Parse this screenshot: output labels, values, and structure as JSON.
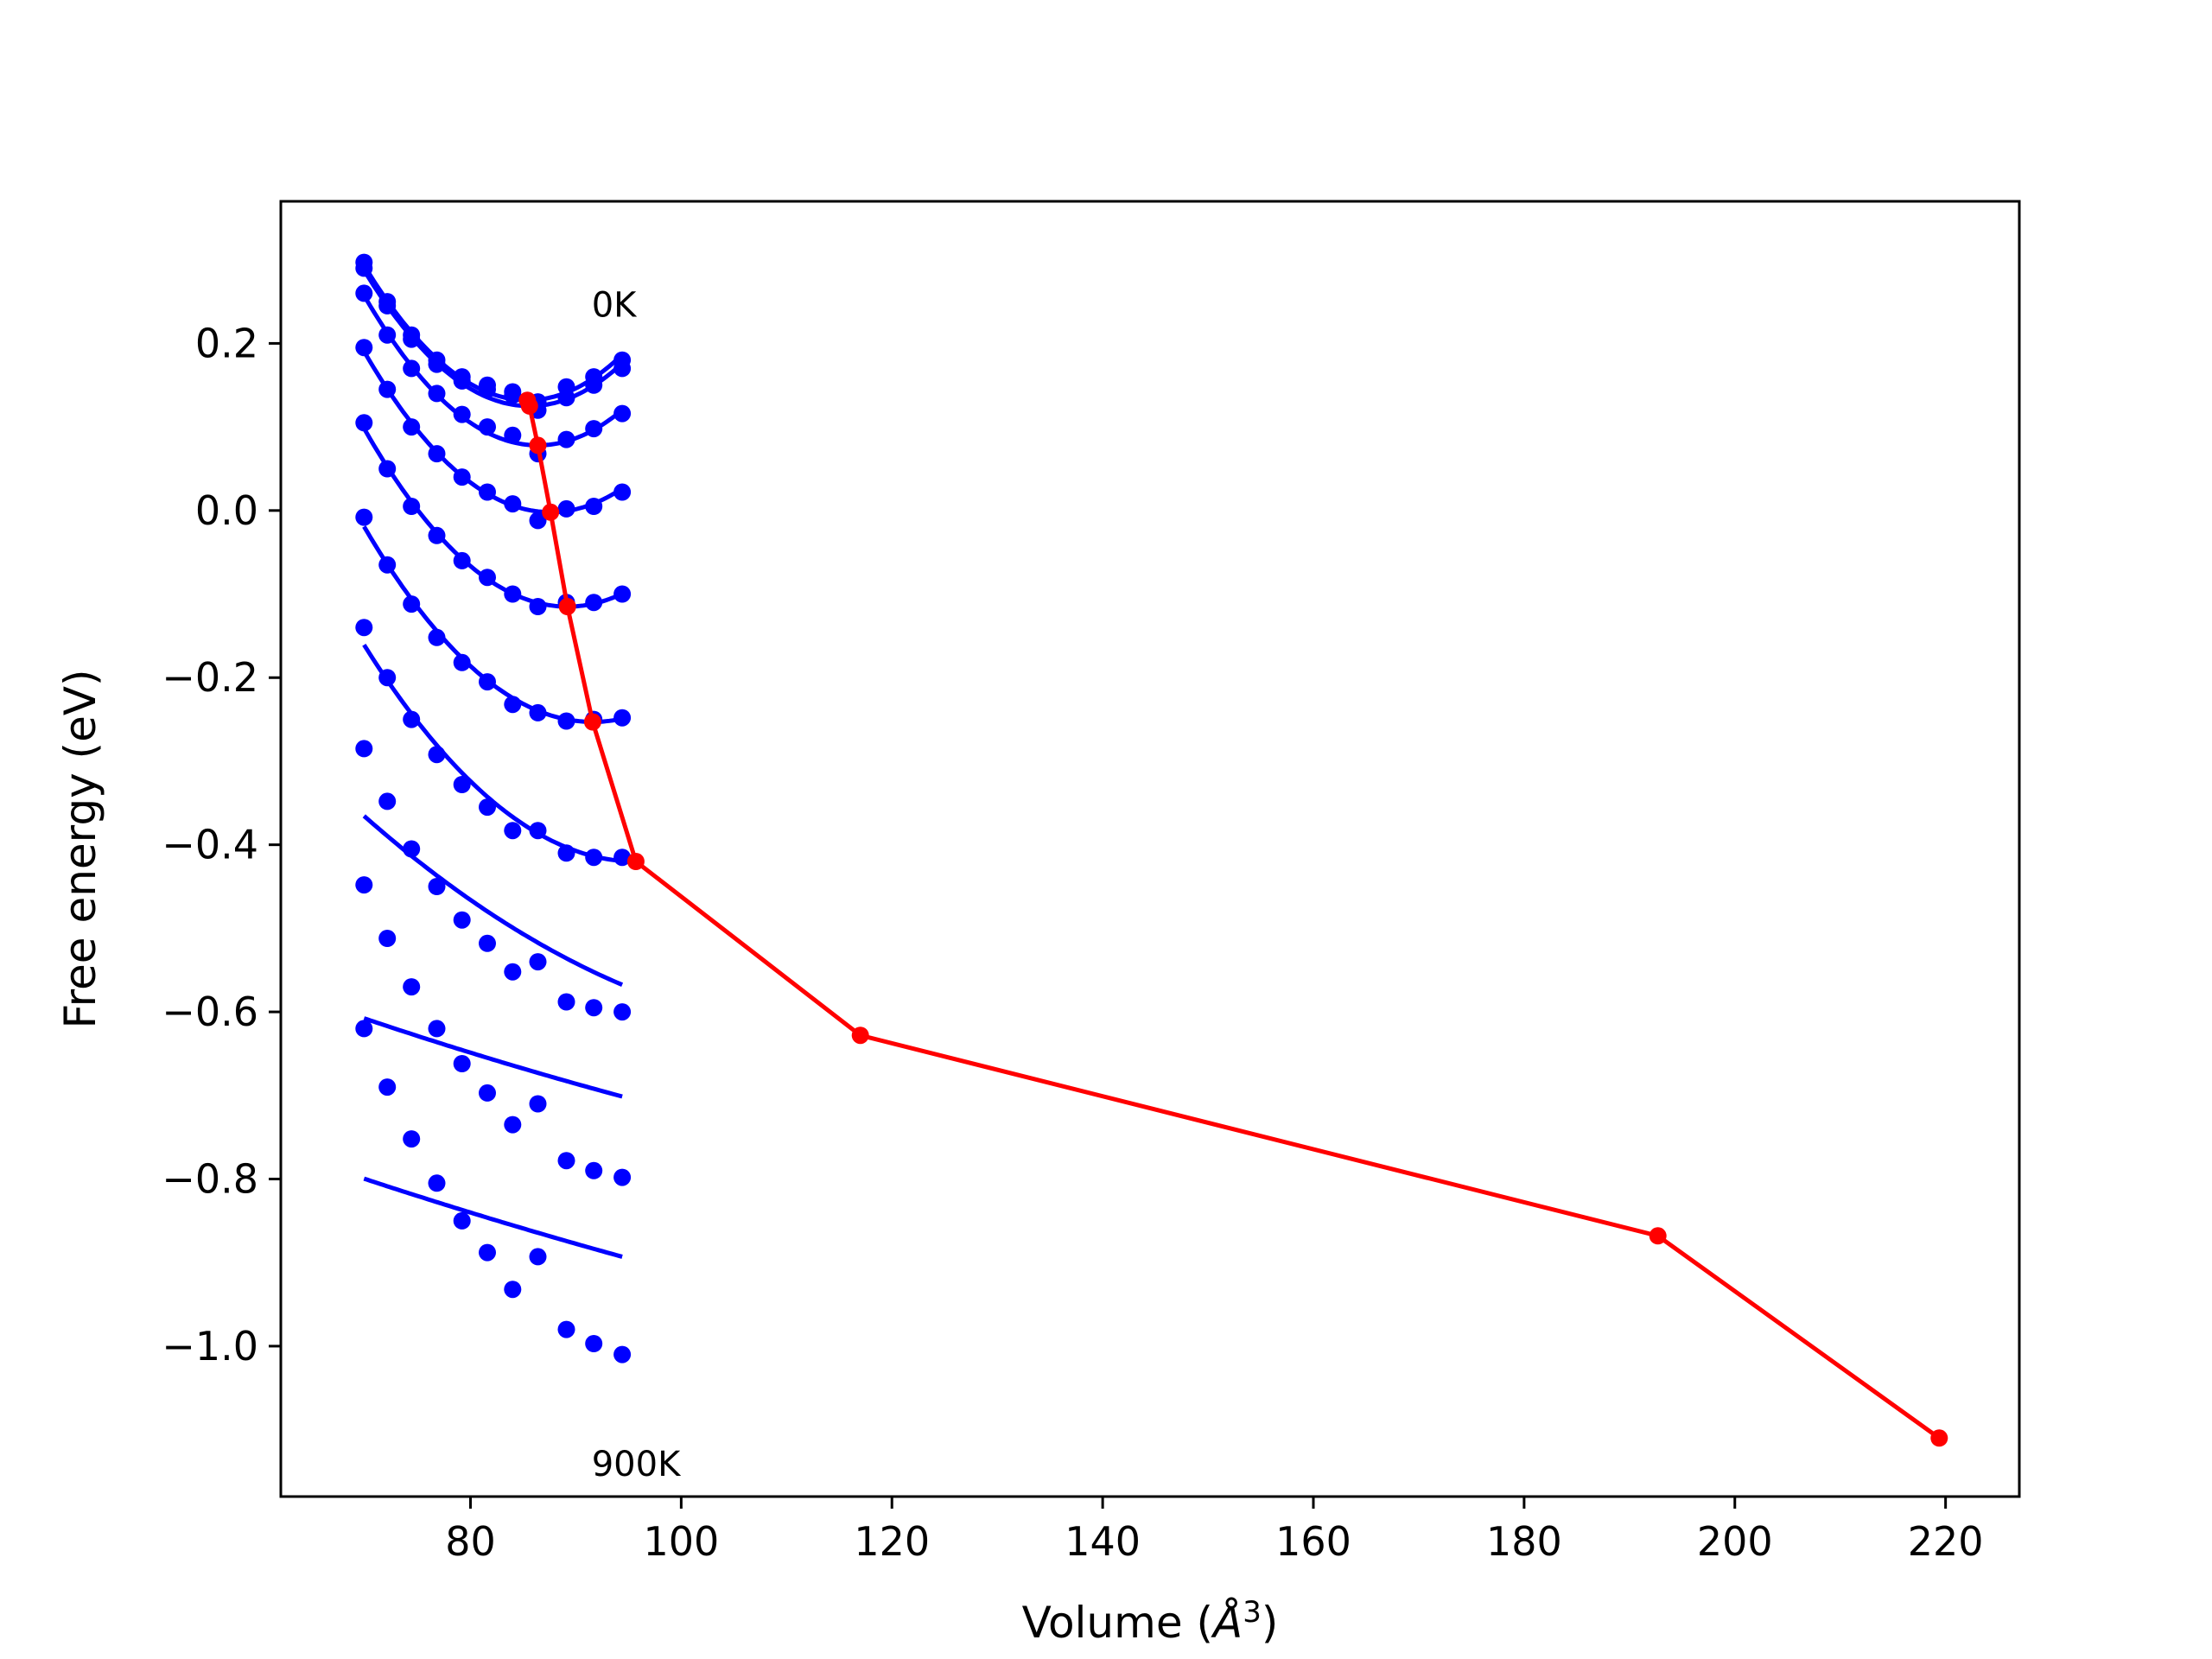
{
  "chart_data": {
    "type": "line",
    "xlabel": "Volume (",
    "xlabel_unit": "Å",
    "xlabel_exp": "3",
    "xlabel_close": ")",
    "ylabel": "Free energy (eV)",
    "xlim": [
      62,
      227
    ],
    "ylim": [
      -1.18,
      0.37
    ],
    "xticks": [
      80,
      100,
      120,
      140,
      160,
      180,
      200,
      220
    ],
    "yticks": [
      0.2,
      0.0,
      -0.2,
      -0.4,
      -0.6,
      -0.8,
      -1.0
    ],
    "grid": false,
    "curve_color": "#0000ff",
    "min_line_color": "#ff0000",
    "annotations": [
      {
        "text": "0K",
        "x": 91.5,
        "y": 0.232
      },
      {
        "text": "900K",
        "x": 91.5,
        "y": -1.155
      }
    ],
    "volumes": [
      69.9,
      72.1,
      74.4,
      76.8,
      79.2,
      81.6,
      84.0,
      86.4,
      89.1,
      91.7,
      94.4
    ],
    "series": [
      {
        "points": [
          0.297,
          0.25,
          0.21,
          0.18,
          0.16,
          0.15,
          0.142,
          0.13,
          0.148,
          0.16,
          0.18
        ]
      },
      {
        "points": [
          0.29,
          0.245,
          0.205,
          0.175,
          0.155,
          0.145,
          0.138,
          0.12,
          0.135,
          0.15,
          0.17
        ]
      },
      {
        "points": [
          0.26,
          0.21,
          0.17,
          0.14,
          0.115,
          0.1,
          0.09,
          0.068,
          0.085,
          0.098,
          0.116
        ]
      },
      {
        "points": [
          0.195,
          0.145,
          0.1,
          0.068,
          0.04,
          0.022,
          0.008,
          -0.012,
          0.002,
          0.005,
          0.022
        ]
      },
      {
        "points": [
          0.105,
          0.05,
          0.005,
          -0.03,
          -0.06,
          -0.08,
          -0.1,
          -0.115,
          -0.11,
          -0.11,
          -0.1
        ]
      },
      {
        "points": [
          -0.008,
          -0.065,
          -0.112,
          -0.152,
          -0.182,
          -0.205,
          -0.232,
          -0.242,
          -0.252,
          -0.25,
          -0.248
        ]
      },
      {
        "points": [
          -0.14,
          -0.2,
          -0.25,
          -0.292,
          -0.328,
          -0.355,
          -0.383,
          -0.383,
          -0.41,
          -0.415,
          -0.415
        ]
      },
      {
        "points": [
          -0.285,
          -0.348,
          -0.405,
          -0.45,
          -0.49,
          -0.518,
          -0.552,
          -0.54,
          -0.588,
          -0.595,
          -0.6
        ]
      },
      {
        "points": [
          -0.448,
          -0.512,
          -0.57,
          -0.62,
          -0.662,
          -0.697,
          -0.735,
          -0.71,
          -0.778,
          -0.79,
          -0.798
        ]
      },
      {
        "points": [
          -0.62,
          -0.69,
          -0.752,
          -0.805,
          -0.85,
          -0.888,
          -0.932,
          -0.893,
          -0.98,
          -0.997,
          -1.01
        ]
      }
    ],
    "fit_curves": [
      {
        "x_min": 85.4,
        "y_min": 0.132
      },
      {
        "x_min": 85.6,
        "y_min": 0.125
      },
      {
        "x_min": 86.4,
        "y_min": 0.078
      },
      {
        "x_min": 87.6,
        "y_min": -0.002
      },
      {
        "x_min": 89.2,
        "y_min": -0.115
      },
      {
        "x_min": 91.6,
        "y_min": -0.253
      },
      {
        "x_min": 95.7,
        "y_min": -0.42
      },
      {
        "x_min": 117.0,
        "y_min": -0.628
      },
      {
        "x_min": 192.7,
        "y_min": -0.868
      },
      {
        "x_min": 219.4,
        "y_min": -1.11
      }
    ],
    "minima": {
      "x": [
        85.4,
        85.6,
        86.4,
        87.6,
        89.2,
        91.6,
        95.7,
        117.0,
        192.7,
        219.4
      ],
      "y": [
        0.132,
        0.125,
        0.078,
        -0.002,
        -0.115,
        -0.253,
        -0.42,
        -0.628,
        -0.868,
        -1.11
      ]
    }
  }
}
